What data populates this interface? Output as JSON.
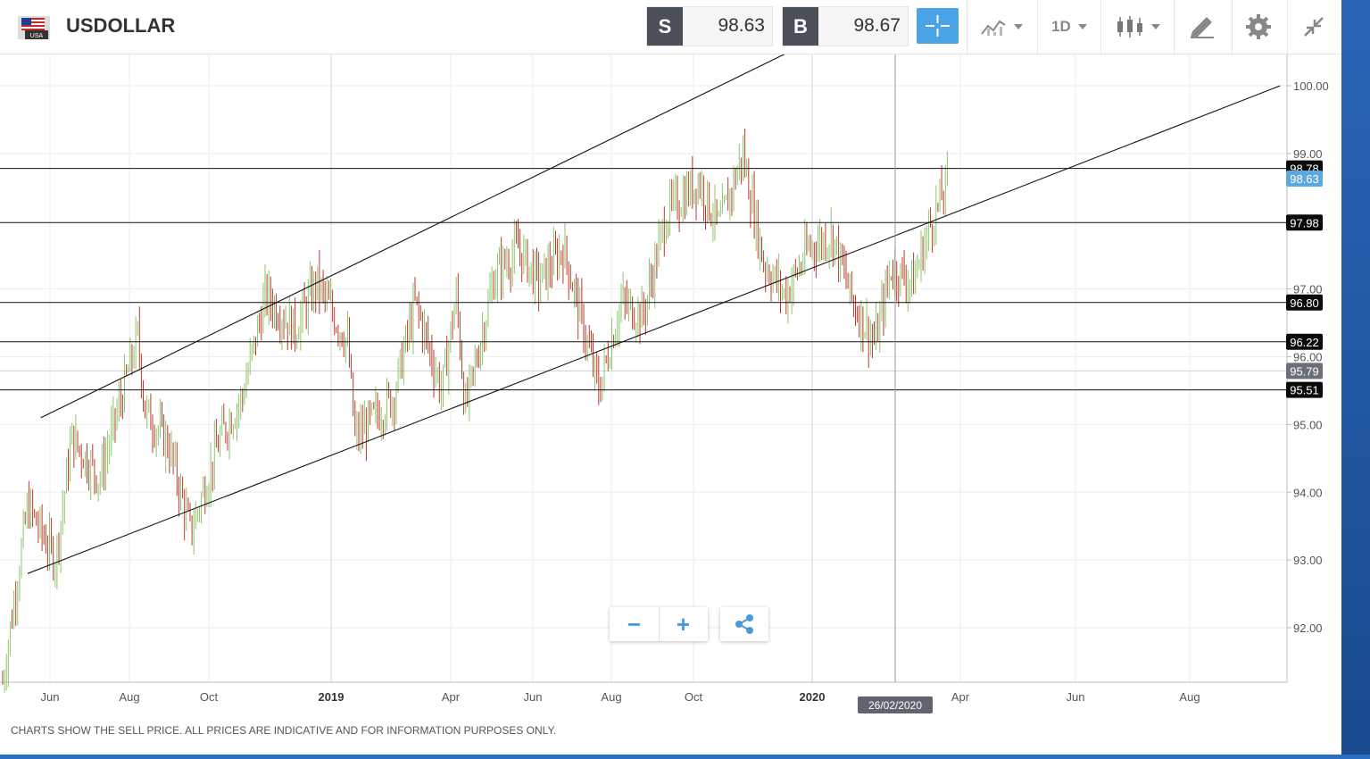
{
  "app": {
    "symbol": "USDOLLAR",
    "flag_label": "USA",
    "sell": {
      "label": "S",
      "price": "98.63"
    },
    "buy": {
      "label": "B",
      "price": "98.67"
    },
    "period": "1D",
    "disclaimer": "CHARTS SHOW THE SELL PRICE. ALL PRICES ARE INDICATIVE AND FOR INFORMATION PURPOSES ONLY.",
    "icons": [
      "usa-flag-icon",
      "crosshair-icon",
      "line-chart-type-icon",
      "period-dropdown",
      "candlestick-icon",
      "draw-pen-icon",
      "gear-icon",
      "collapse-icon",
      "zoom-out-icon",
      "zoom-in-icon",
      "share-icon"
    ],
    "colors": {
      "up": "#8cc66b",
      "down": "#b93b2c",
      "accent": "#4aa3e6",
      "tag_dark": "#0b0b0b",
      "tag_current": "#5aa9e0",
      "tag_gray": "#6b6f77"
    }
  },
  "chart_data": {
    "type": "candlestick",
    "y_ticks": [
      "100.00",
      "99.00",
      "97.00",
      "96.00",
      "95.00",
      "94.00",
      "93.00",
      "92.00"
    ],
    "x_ticks": [
      {
        "label": "Jun",
        "bold": false
      },
      {
        "label": "Aug",
        "bold": false
      },
      {
        "label": "Oct",
        "bold": false
      },
      {
        "label": "2019",
        "bold": true
      },
      {
        "label": "Apr",
        "bold": false
      },
      {
        "label": "Jun",
        "bold": false
      },
      {
        "label": "Aug",
        "bold": false
      },
      {
        "label": "Oct",
        "bold": false
      },
      {
        "label": "2020",
        "bold": true
      },
      {
        "label": "Apr",
        "bold": false
      },
      {
        "label": "Jun",
        "bold": false
      },
      {
        "label": "Aug",
        "bold": false
      }
    ],
    "crosshair_date": "26/02/2020",
    "horizontal_levels": [
      {
        "label": "98.78",
        "style": "dark"
      },
      {
        "label": "97.98",
        "style": "dark"
      },
      {
        "label": "96.80",
        "style": "dark"
      },
      {
        "label": "96.22",
        "style": "dark"
      },
      {
        "label": "95.51",
        "style": "dark"
      }
    ],
    "current_price_tag": "98.63",
    "gray_level_tag": "95.79",
    "ylim": [
      91.2,
      100.8
    ],
    "grid": true,
    "series_path": [
      [
        "2018-05-15",
        91.2
      ],
      [
        "2018-06-01",
        93.8
      ],
      [
        "2018-06-20",
        93.0
      ],
      [
        "2018-07-01",
        94.8
      ],
      [
        "2018-07-20",
        94.2
      ],
      [
        "2018-08-15",
        96.3
      ],
      [
        "2018-08-20",
        95.2
      ],
      [
        "2018-09-05",
        94.7
      ],
      [
        "2018-09-20",
        93.4
      ],
      [
        "2018-10-10",
        94.8
      ],
      [
        "2018-10-25",
        95.4
      ],
      [
        "2018-11-10",
        96.9
      ],
      [
        "2018-11-30",
        96.4
      ],
      [
        "2018-12-15",
        97.1
      ],
      [
        "2019-01-05",
        96.2
      ],
      [
        "2019-01-10",
        94.8
      ],
      [
        "2019-02-05",
        95.4
      ],
      [
        "2019-02-20",
        96.8
      ],
      [
        "2019-03-10",
        95.5
      ],
      [
        "2019-03-20",
        96.9
      ],
      [
        "2019-03-26",
        95.2
      ],
      [
        "2019-04-15",
        97.2
      ],
      [
        "2019-05-01",
        97.6
      ],
      [
        "2019-05-15",
        97.1
      ],
      [
        "2019-06-01",
        97.6
      ],
      [
        "2019-06-25",
        95.5
      ],
      [
        "2019-07-10",
        96.8
      ],
      [
        "2019-07-25",
        96.6
      ],
      [
        "2019-08-10",
        98.1
      ],
      [
        "2019-09-01",
        98.6
      ],
      [
        "2019-09-15",
        97.9
      ],
      [
        "2019-10-01",
        99.0
      ],
      [
        "2019-10-15",
        97.4
      ],
      [
        "2019-10-30",
        96.9
      ],
      [
        "2019-11-15",
        97.6
      ],
      [
        "2019-12-01",
        97.8
      ],
      [
        "2019-12-15",
        96.8
      ],
      [
        "2019-12-30",
        96.2
      ],
      [
        "2020-01-10",
        97.3
      ],
      [
        "2020-01-25",
        97.1
      ],
      [
        "2020-02-05",
        97.9
      ],
      [
        "2020-02-18",
        98.6
      ]
    ],
    "trend_lines": [
      {
        "from": [
          "2018-06-10",
          95.1
        ],
        "to": [
          "2019-11-30",
          100.8
        ]
      },
      {
        "from": [
          "2018-06-01",
          92.8
        ],
        "to": [
          "2020-10-01",
          100.0
        ]
      }
    ]
  }
}
